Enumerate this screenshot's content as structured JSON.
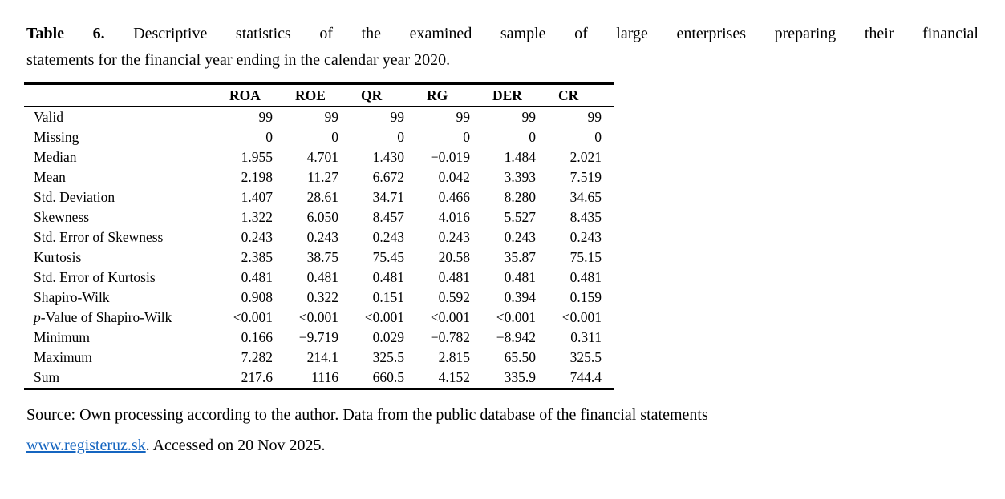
{
  "caption": {
    "label": "Table 6.",
    "line1_rest": " Descriptive statistics of the examined sample of large enterprises preparing their financial",
    "line2": "statements for the financial year ending in the calendar year 2020."
  },
  "table": {
    "columns": [
      "ROA",
      "ROE",
      "QR",
      "RG",
      "DER",
      "CR"
    ],
    "rows": [
      {
        "label": "Valid",
        "values": [
          "99",
          "99",
          "99",
          "99",
          "99",
          "99"
        ]
      },
      {
        "label": "Missing",
        "values": [
          "0",
          "0",
          "0",
          "0",
          "0",
          "0"
        ]
      },
      {
        "label": "Median",
        "values": [
          "1.955",
          "4.701",
          "1.430",
          "−0.019",
          "1.484",
          "2.021"
        ]
      },
      {
        "label": "Mean",
        "values": [
          "2.198",
          "11.27",
          "6.672",
          "0.042",
          "3.393",
          "7.519"
        ]
      },
      {
        "label": "Std. Deviation",
        "values": [
          "1.407",
          "28.61",
          "34.71",
          "0.466",
          "8.280",
          "34.65"
        ]
      },
      {
        "label": "Skewness",
        "values": [
          "1.322",
          "6.050",
          "8.457",
          "4.016",
          "5.527",
          "8.435"
        ]
      },
      {
        "label": "Std. Error of Skewness",
        "values": [
          "0.243",
          "0.243",
          "0.243",
          "0.243",
          "0.243",
          "0.243"
        ]
      },
      {
        "label": "Kurtosis",
        "values": [
          "2.385",
          "38.75",
          "75.45",
          "20.58",
          "35.87",
          "75.15"
        ]
      },
      {
        "label": "Std. Error of Kurtosis",
        "values": [
          "0.481",
          "0.481",
          "0.481",
          "0.481",
          "0.481",
          "0.481"
        ]
      },
      {
        "label": "Shapiro-Wilk",
        "values": [
          "0.908",
          "0.322",
          "0.151",
          "0.592",
          "0.394",
          "0.159"
        ]
      },
      {
        "label_lead": "p",
        "label_rest": "-Value of Shapiro-Wilk",
        "values": [
          "<0.001",
          "<0.001",
          "<0.001",
          "<0.001",
          "<0.001",
          "<0.001"
        ]
      },
      {
        "label": "Minimum",
        "values": [
          "0.166",
          "−9.719",
          "0.029",
          "−0.782",
          "−8.942",
          "0.311"
        ]
      },
      {
        "label": "Maximum",
        "values": [
          "7.282",
          "214.1",
          "325.5",
          "2.815",
          "65.50",
          "325.5"
        ]
      },
      {
        "label": "Sum",
        "values": [
          "217.6",
          "1116",
          "660.5",
          "4.152",
          "335.9",
          "744.4"
        ]
      }
    ]
  },
  "source": {
    "line1": "Source: Own processing according to the author. Data from the public database of the financial statements",
    "link": "www.registeruz.sk",
    "after_link": ". Accessed on 20 Nov 2025.",
    "link_color": "#1565c0"
  }
}
